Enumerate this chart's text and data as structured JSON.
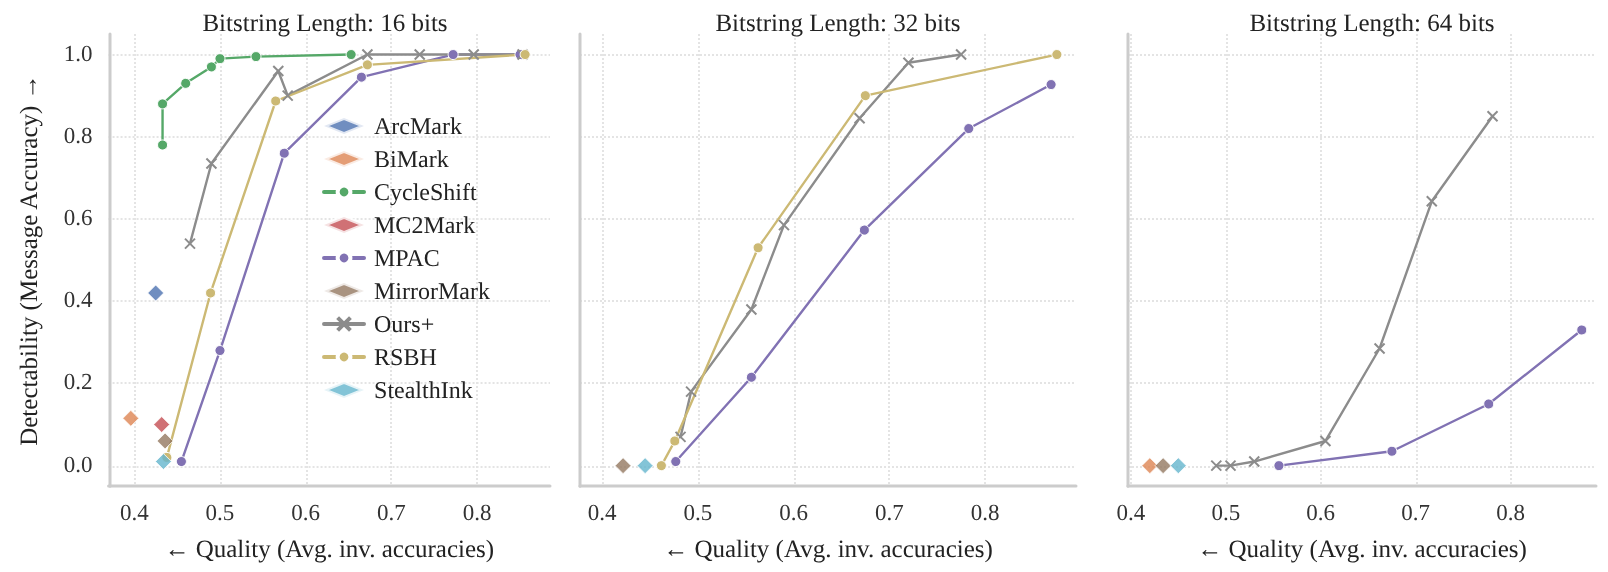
{
  "chart_data": [
    {
      "type": "line",
      "title": "Bitstring Length: 16 bits",
      "xlabel": "← Quality (Avg. inv. accuracies)",
      "ylabel": "Detectability (Message Accuracy) →",
      "xlim": [
        0.37,
        0.885
      ],
      "xticks": [
        0.4,
        0.5,
        0.6,
        0.7,
        0.8
      ],
      "ylim": [
        -0.05,
        1.05
      ],
      "yticks": [
        {
          "value": 0,
          "label": "0.0"
        },
        0.2,
        0.4,
        0.6,
        0.8,
        {
          "value": 1,
          "label": "1.0"
        }
      ],
      "grid": true,
      "legend": "right",
      "series": [
        {
          "name": "ArcMark",
          "type": "scatter",
          "marker": "diamond",
          "color": "#4c72b0",
          "x": [
            0.425
          ],
          "values": [
            0.42
          ]
        },
        {
          "name": "BiMark",
          "type": "scatter",
          "marker": "diamond",
          "color": "#dd8452",
          "x": [
            0.396
          ],
          "values": [
            0.115
          ]
        },
        {
          "name": "CycleShift",
          "type": "line",
          "marker": "circle",
          "color": "#55a868",
          "x": [
            0.433,
            0.433,
            0.46,
            0.49,
            0.5,
            0.542,
            0.653
          ],
          "values": [
            0.78,
            0.88,
            0.93,
            0.97,
            0.99,
            0.995,
            1.0
          ]
        },
        {
          "name": "MC2Mark",
          "type": "scatter",
          "marker": "diamond",
          "color": "#c44e52",
          "x": [
            0.432
          ],
          "values": [
            0.1
          ]
        },
        {
          "name": "MPAC",
          "type": "line",
          "marker": "circle",
          "color": "#8172b3",
          "x": [
            0.455,
            0.5,
            0.575,
            0.665,
            0.772,
            0.85
          ],
          "values": [
            0.01,
            0.28,
            0.76,
            0.945,
            1.0,
            1.0
          ]
        },
        {
          "name": "MirrorMark",
          "type": "scatter",
          "marker": "diamond",
          "color": "#937860",
          "x": [
            0.436
          ],
          "values": [
            0.06
          ]
        },
        {
          "name": "Ours+",
          "type": "line",
          "marker": "cross",
          "color": "#8c8c8c",
          "x": [
            0.465,
            0.49,
            0.568,
            0.579,
            0.672,
            0.733,
            0.796,
            0.853
          ],
          "values": [
            0.54,
            0.735,
            0.96,
            0.9,
            1.0,
            1.0,
            1.0,
            1.0
          ]
        },
        {
          "name": "RSBH",
          "type": "line",
          "marker": "circle",
          "color": "#ccb974",
          "x": [
            0.438,
            0.489,
            0.565,
            0.672,
            0.856
          ],
          "values": [
            0.02,
            0.42,
            0.887,
            0.975,
            1.0
          ]
        },
        {
          "name": "StealthInk",
          "type": "scatter",
          "marker": "diamond",
          "color": "#64b5cd",
          "x": [
            0.434
          ],
          "values": [
            0.01
          ]
        }
      ]
    },
    {
      "type": "line",
      "title": "Bitstring Length: 32 bits",
      "xlabel": "← Quality (Avg. inv. accuracies)",
      "xlim": [
        0.377,
        0.895
      ],
      "xticks": [
        0.4,
        0.5,
        0.6,
        0.7,
        0.8
      ],
      "ylim": [
        -0.05,
        1.05
      ],
      "yticks": [
        0.0,
        0.2,
        0.4,
        0.6,
        0.8,
        1.0
      ],
      "tick_labels": "x",
      "grid": true,
      "series": [
        {
          "type": "scatter",
          "marker": "diamond",
          "color": "#937860",
          "x": [
            0.422
          ],
          "values": [
            0.0
          ]
        },
        {
          "type": "scatter",
          "marker": "diamond",
          "color": "#64b5cd",
          "x": [
            0.445
          ],
          "values": [
            0.0
          ]
        },
        {
          "type": "line",
          "marker": "circle",
          "color": "#8172b3",
          "x": [
            0.477,
            0.556,
            0.674,
            0.783,
            0.869
          ],
          "values": [
            0.01,
            0.215,
            0.573,
            0.82,
            0.927
          ]
        },
        {
          "type": "line",
          "marker": "cross",
          "color": "#8c8c8c",
          "x": [
            0.482,
            0.493,
            0.556,
            0.59,
            0.669,
            0.72,
            0.775
          ],
          "values": [
            0.07,
            0.18,
            0.38,
            0.585,
            0.845,
            0.98,
            1.0
          ]
        },
        {
          "type": "line",
          "marker": "circle",
          "color": "#ccb974",
          "x": [
            0.462,
            0.476,
            0.563,
            0.675,
            0.875
          ],
          "values": [
            0.0,
            0.06,
            0.53,
            0.9,
            1.0
          ]
        }
      ]
    },
    {
      "type": "line",
      "title": "Bitstring Length: 64 bits",
      "xlabel": "← Quality (Avg. inv. accuracies)",
      "xlim": [
        0.397,
        0.89
      ],
      "xticks": [
        0.4,
        0.5,
        0.6,
        0.7,
        0.8
      ],
      "ylim": [
        -0.05,
        1.05
      ],
      "yticks": [
        0.0,
        0.2,
        0.4,
        0.6,
        0.8,
        1.0
      ],
      "tick_labels": "x",
      "grid": true,
      "series": [
        {
          "type": "scatter",
          "marker": "diamond",
          "color": "#dd8452",
          "x": [
            0.42
          ],
          "values": [
            0.0
          ]
        },
        {
          "type": "scatter",
          "marker": "diamond",
          "color": "#937860",
          "x": [
            0.434
          ],
          "values": [
            0.0
          ]
        },
        {
          "type": "scatter",
          "marker": "diamond",
          "color": "#64b5cd",
          "x": [
            0.45
          ],
          "values": [
            0.0
          ]
        },
        {
          "type": "line",
          "marker": "circle",
          "color": "#8172b3",
          "x": [
            0.556,
            0.675,
            0.777,
            0.875
          ],
          "values": [
            0.0,
            0.035,
            0.15,
            0.33
          ]
        },
        {
          "type": "line",
          "marker": "cross",
          "color": "#8c8c8c",
          "x": [
            0.49,
            0.505,
            0.53,
            0.605,
            0.662,
            0.717,
            0.781
          ],
          "values": [
            0.0,
            0.0,
            0.01,
            0.06,
            0.285,
            0.643,
            0.85
          ]
        }
      ]
    }
  ]
}
